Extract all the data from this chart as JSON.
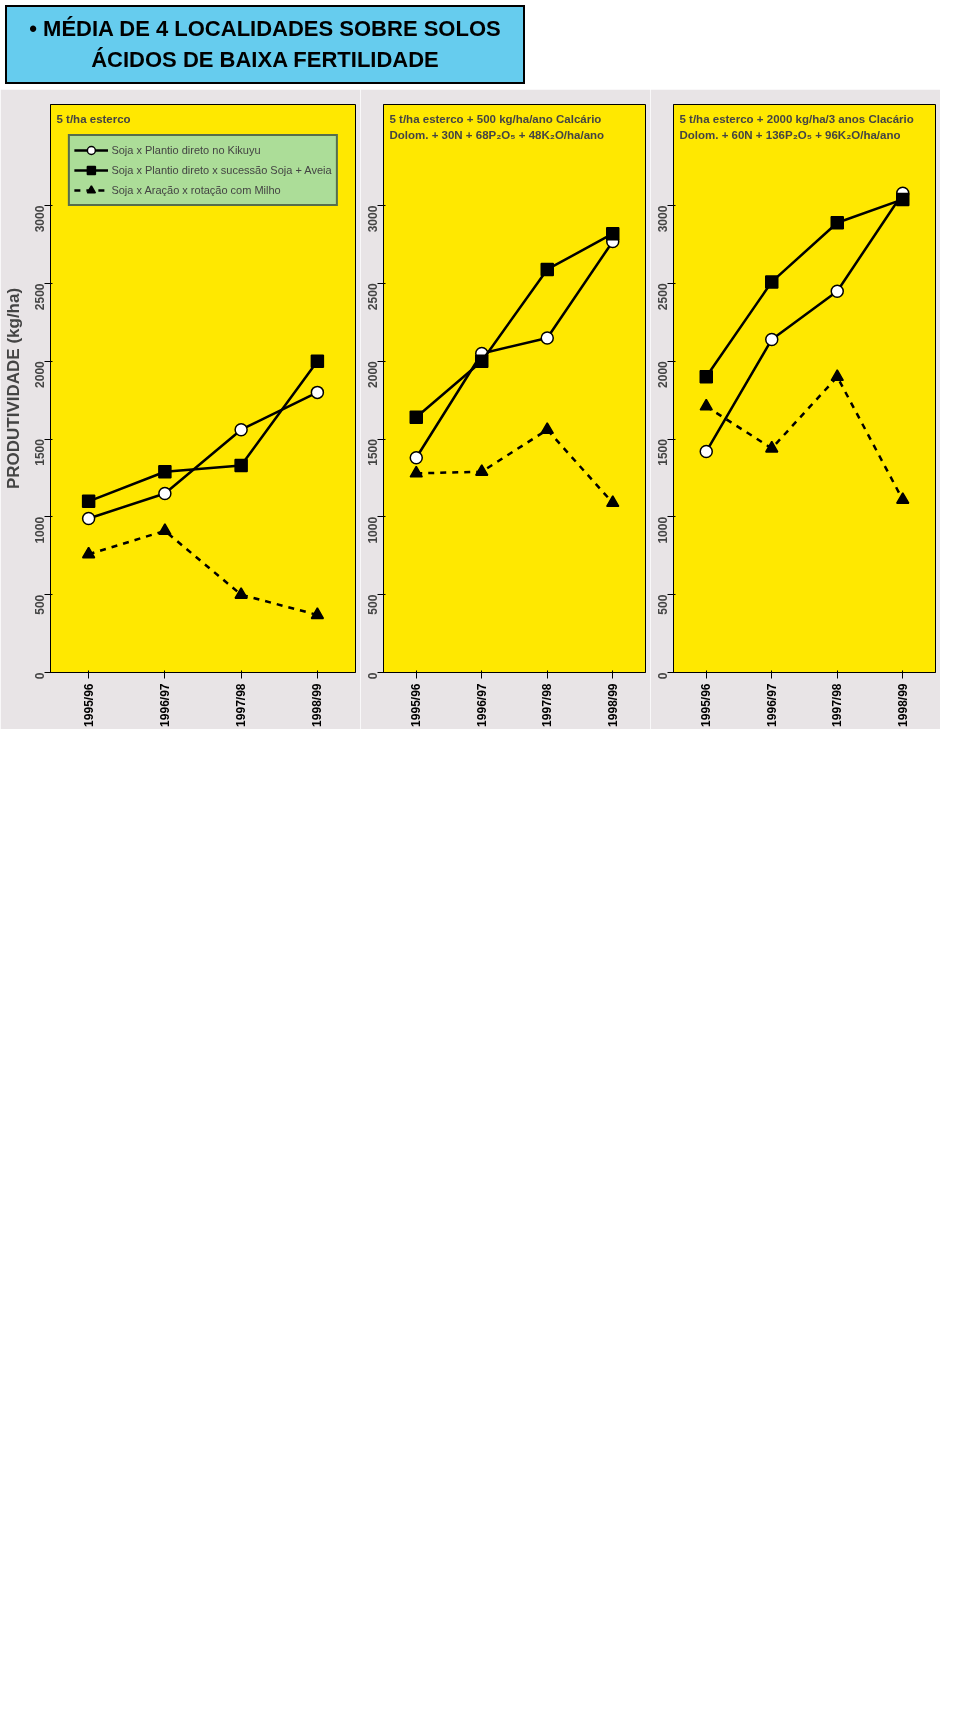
{
  "chart_data": [
    {
      "type": "line",
      "title": "• MÉDIA DE  4 LOCALIDADES SOBRE SOLOS ÁCIDOS DE BAIXA FERTILIDADE",
      "ylabel": "PRODUTIVIDADE (kg/ha)",
      "annotations": [
        "5 t/ha esterco"
      ],
      "categories": [
        "1995/96",
        "1996/97",
        "1997/98",
        "1998/99"
      ],
      "ylim": [
        0,
        3650
      ],
      "yticks": [
        0,
        500,
        1000,
        1500,
        2000,
        2500,
        3000
      ],
      "grid": false,
      "legend": "top",
      "series": [
        {
          "name": "Soja x Plantio direto no Kikuyu",
          "color": "#000000",
          "marker": "circle",
          "line_style": "solid",
          "values": [
            990,
            1150,
            1560,
            1800
          ]
        },
        {
          "name": "Soja x Plantio direto x sucessão Soja + Aveia",
          "color": "#000000",
          "marker": "square",
          "line_style": "solid",
          "values": [
            1100,
            1290,
            1330,
            2000
          ]
        },
        {
          "name": "Soja x Aração x rotação com Milho",
          "color": "#000000",
          "marker": "triangle",
          "line_style": "dashed",
          "values": [
            760,
            910,
            500,
            370
          ]
        }
      ]
    },
    {
      "type": "line",
      "annotations": [
        "5 t/ha esterco + 500 kg/ha/ano Calcário",
        "Dolom. + 30N + 68P₂O₅ + 48K₂O/ha/ano"
      ],
      "categories": [
        "1995/96",
        "1996/97",
        "1997/98",
        "1998/99"
      ],
      "ylim": [
        0,
        3650
      ],
      "yticks": [
        0,
        500,
        1000,
        1500,
        2000,
        2500,
        3000
      ],
      "grid": false,
      "series": [
        {
          "color": "#000000",
          "marker": "circle",
          "line_style": "solid",
          "values": [
            1380,
            2050,
            2150,
            2770
          ]
        },
        {
          "color": "#000000",
          "marker": "square",
          "line_style": "solid",
          "values": [
            1640,
            2000,
            2590,
            2820
          ]
        },
        {
          "color": "#000000",
          "marker": "triangle",
          "line_style": "dashed",
          "values": [
            1280,
            1290,
            1560,
            1090
          ]
        }
      ]
    },
    {
      "type": "line",
      "annotations": [
        "5 t/ha esterco + 2000 kg/ha/3 anos Clacário",
        "Dolom. + 60N + 136P₂O₅ + 96K₂O/ha/ano"
      ],
      "categories": [
        "1995/96",
        "1996/97",
        "1997/98",
        "1998/99"
      ],
      "ylim": [
        0,
        3650
      ],
      "yticks": [
        0,
        500,
        1000,
        1500,
        2000,
        2500,
        3000
      ],
      "grid": false,
      "series": [
        {
          "color": "#000000",
          "marker": "circle",
          "line_style": "solid",
          "values": [
            1420,
            2140,
            2450,
            3080
          ]
        },
        {
          "color": "#000000",
          "marker": "square",
          "line_style": "solid",
          "values": [
            1900,
            2510,
            2890,
            3040
          ]
        },
        {
          "color": "#000000",
          "marker": "triangle",
          "line_style": "dashed",
          "values": [
            1710,
            1440,
            1900,
            1110
          ]
        }
      ]
    }
  ]
}
